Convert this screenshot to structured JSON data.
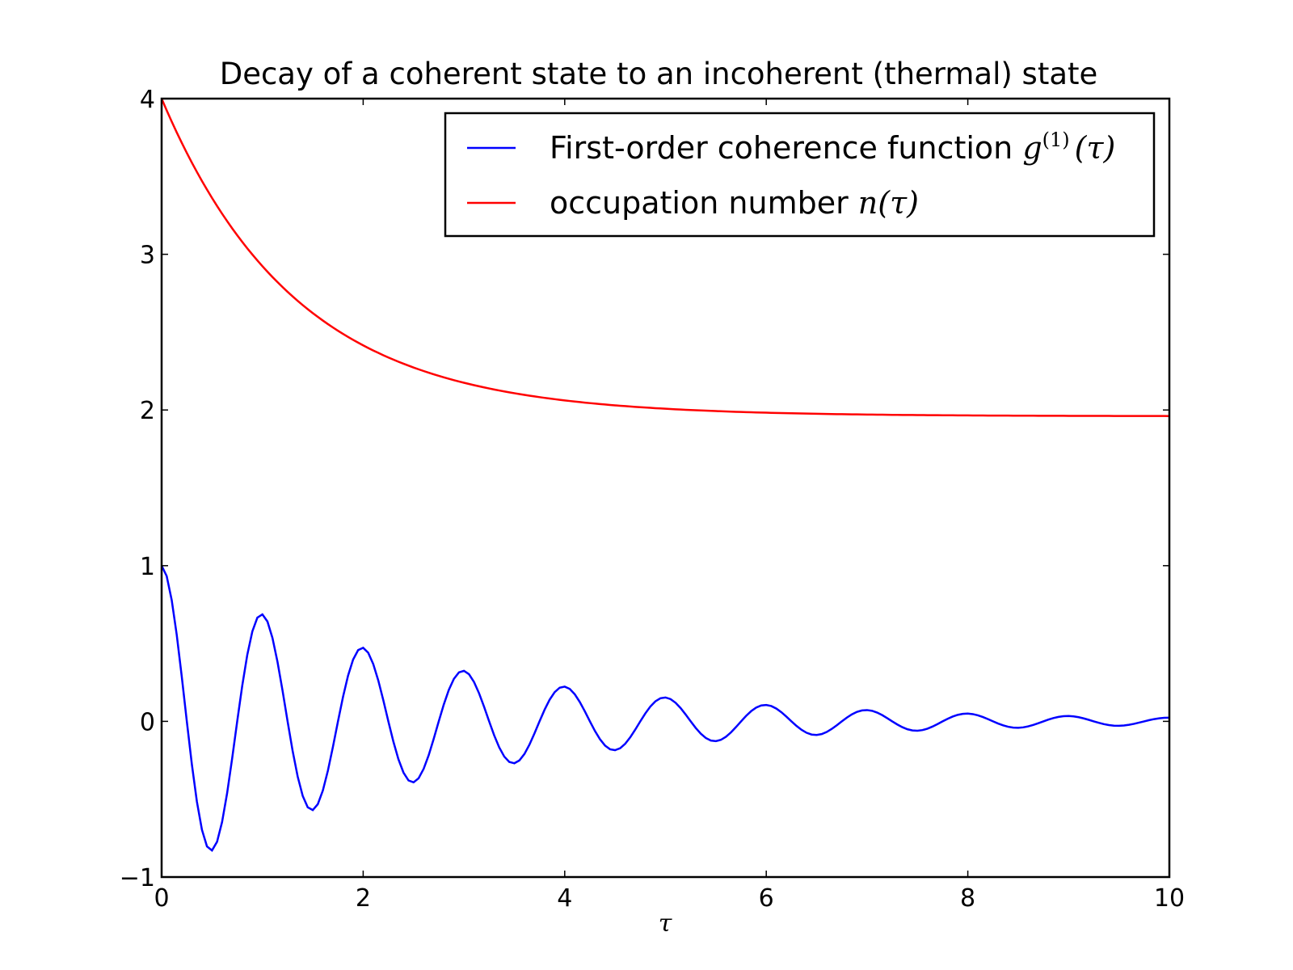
{
  "chart_data": {
    "type": "line",
    "title": "Decay of a coherent state to an incoherent (thermal) state",
    "xlabel": "τ",
    "ylabel": "",
    "xlim": [
      0,
      10
    ],
    "ylim": [
      -1,
      4
    ],
    "xticks": [
      0,
      2,
      4,
      6,
      8,
      10
    ],
    "xtick_labels": [
      "0",
      "2",
      "4",
      "6",
      "8",
      "10"
    ],
    "yticks": [
      -1,
      0,
      1,
      2,
      3,
      4
    ],
    "ytick_labels": [
      "−1",
      "0",
      "1",
      "2",
      "3",
      "4"
    ],
    "grid": false,
    "legend_position": "top-right",
    "series": [
      {
        "name": "First-order coherence function g^(1)(τ)",
        "legend_prefix": "First-order coherence function ",
        "legend_math": {
          "base": "g",
          "superscript": "(1)",
          "argument": "(τ)"
        },
        "color": "#0000ff",
        "x_range": [
          0,
          10
        ],
        "envelope_decay_rate": 0.375,
        "oscillation_frequency": 1.0,
        "sample_points": [
          [
            0,
            1.0
          ],
          [
            0.5,
            -0.88
          ],
          [
            1.0,
            0.77
          ],
          [
            1.5,
            -0.66
          ],
          [
            2.0,
            0.56
          ],
          [
            2.5,
            -0.47
          ],
          [
            3.0,
            0.39
          ],
          [
            3.5,
            -0.32
          ],
          [
            4.0,
            0.26
          ],
          [
            4.5,
            -0.21
          ],
          [
            5.0,
            0.17
          ],
          [
            5.5,
            -0.14
          ],
          [
            6.0,
            0.11
          ],
          [
            6.5,
            -0.09
          ],
          [
            7.0,
            0.07
          ],
          [
            7.5,
            -0.06
          ],
          [
            8.0,
            0.05
          ],
          [
            8.5,
            -0.04
          ],
          [
            9.0,
            0.03
          ],
          [
            9.5,
            -0.03
          ],
          [
            10.0,
            0.02
          ]
        ]
      },
      {
        "name": "occupation number n(τ)",
        "legend_prefix": "occupation number ",
        "legend_math": {
          "base": "n",
          "superscript": "",
          "argument": "(τ)"
        },
        "color": "#ff0000",
        "x_range": [
          0,
          10
        ],
        "start_value": 4.0,
        "asymptote": 1.96,
        "decay_rate": 0.75,
        "sample_points": [
          [
            0,
            4.0
          ],
          [
            1,
            2.92
          ],
          [
            2,
            2.41
          ],
          [
            3,
            2.17
          ],
          [
            4,
            2.06
          ],
          [
            5,
            2.01
          ],
          [
            6,
            1.98
          ],
          [
            8,
            1.97
          ],
          [
            10,
            1.96
          ]
        ]
      }
    ]
  }
}
